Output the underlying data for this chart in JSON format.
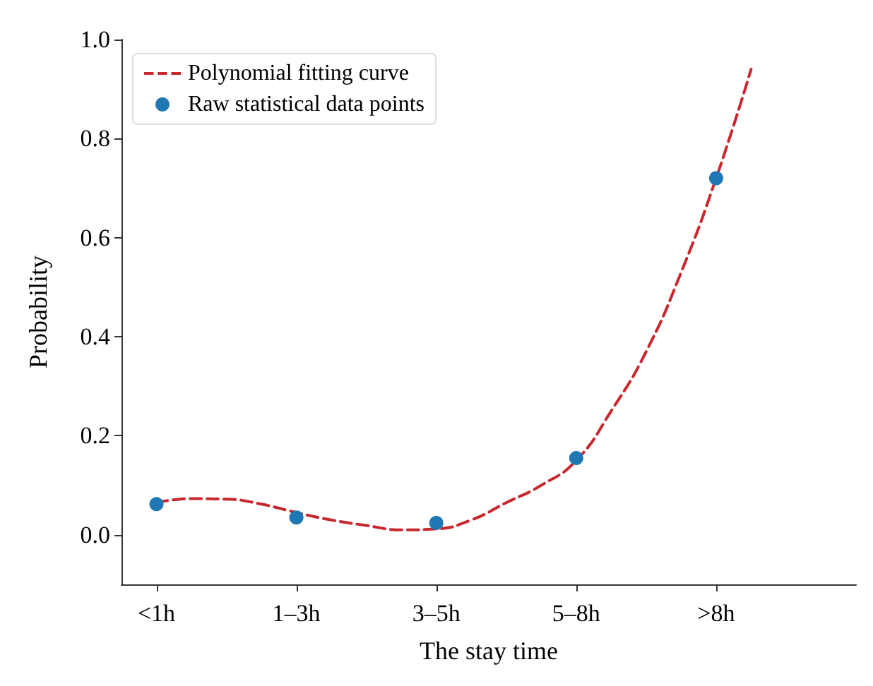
{
  "chart_data": {
    "type": "scatter",
    "xlabel": "The stay time",
    "ylabel": "Probability",
    "categories": [
      null,
      "<1h",
      null,
      null,
      null,
      "1–3h",
      null,
      null,
      null,
      "3–5h",
      null,
      null,
      null,
      "5–8h",
      null,
      null,
      null,
      ">8h",
      null,
      null,
      null,
      null
    ],
    "ylim": [
      -0.1,
      1.0
    ],
    "yticks": [
      {
        "value": 0,
        "label": "0.0"
      },
      {
        "value": 0.2,
        "label": "0.2"
      },
      {
        "value": 0.4,
        "label": "0.4"
      },
      {
        "value": 0.6,
        "label": "0.6"
      },
      {
        "value": 0.8,
        "label": "0.8"
      },
      {
        "value": 1.0,
        "label": "1.0"
      }
    ],
    "grid": false,
    "legend": "top left",
    "series": [
      {
        "name": "Polynomial fitting curve",
        "type": "line",
        "color": "#c8282d",
        "line_style": "dashed",
        "marker": "none",
        "values": [
          null,
          0.065,
          0.073,
          0.072,
          0.062,
          0.045,
          0.03,
          0.019,
          0.01,
          0.012,
          0.03,
          0.065,
          0.1,
          0.15,
          0.25,
          0.37,
          0.53,
          0.72,
          0.94,
          null,
          null,
          null
        ]
      },
      {
        "name": "Raw statistical data points",
        "color": "#1f77b4",
        "marker": "circle",
        "values": [
          null,
          0.062,
          null,
          null,
          null,
          0.035,
          null,
          null,
          null,
          0.024,
          null,
          null,
          null,
          0.155,
          null,
          null,
          null,
          0.72,
          null,
          null,
          null,
          null
        ]
      }
    ]
  }
}
